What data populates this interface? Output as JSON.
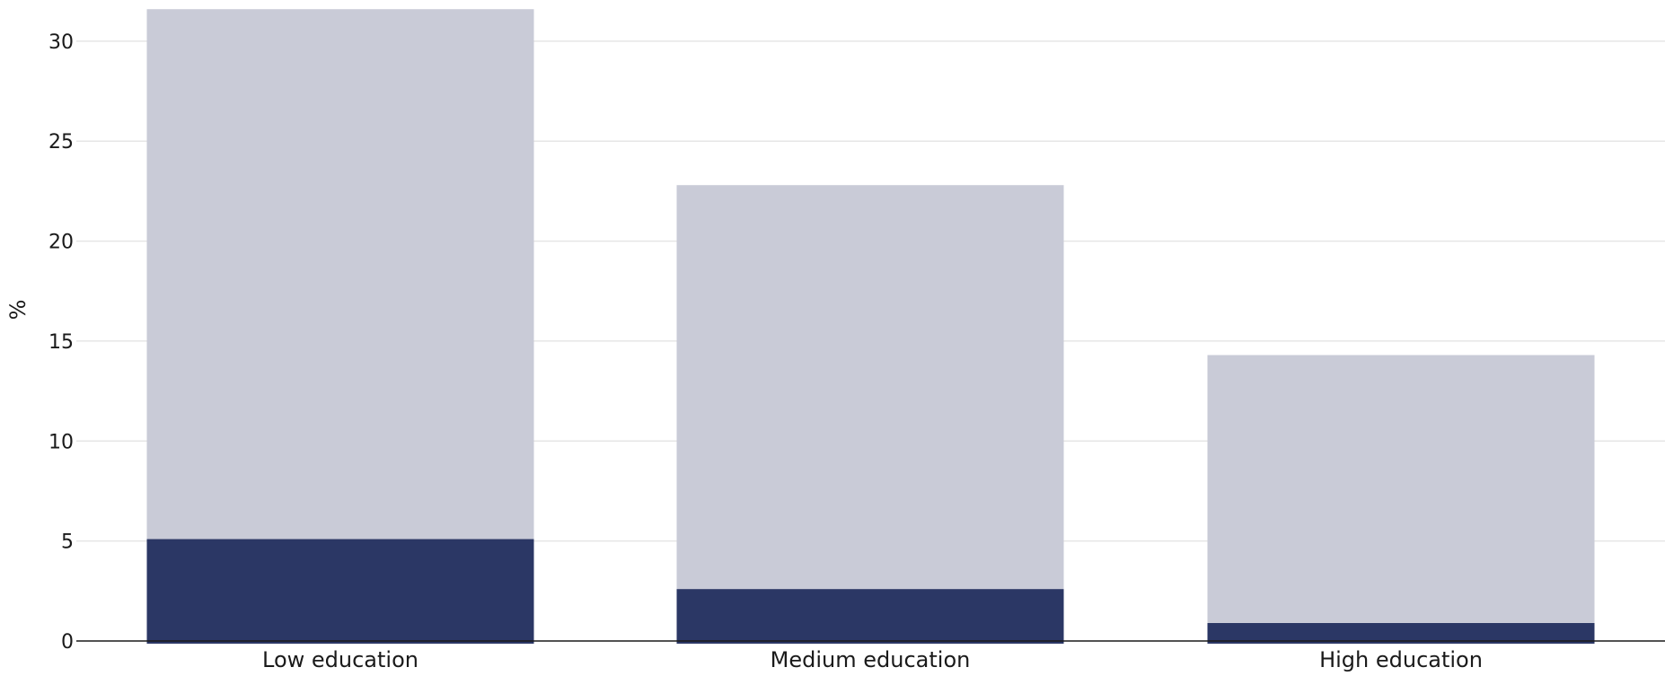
{
  "chart_data": {
    "type": "bar",
    "stacked": true,
    "categories": [
      "Low education",
      "Medium education",
      "High education"
    ],
    "series": [
      {
        "values": [
          5.1,
          2.6,
          0.9
        ],
        "color": "#2b3765"
      },
      {
        "values": [
          26.5,
          20.2,
          13.4
        ],
        "color": "#c9cbd7"
      }
    ],
    "ylabel": "%",
    "xlabel": "",
    "ylim": [
      0,
      31.7
    ],
    "yticks": [
      0,
      5,
      10,
      15,
      20,
      25,
      30
    ],
    "grid": true,
    "gridColor": "#e6e6e6",
    "axisColor": "#1a1a1a"
  }
}
